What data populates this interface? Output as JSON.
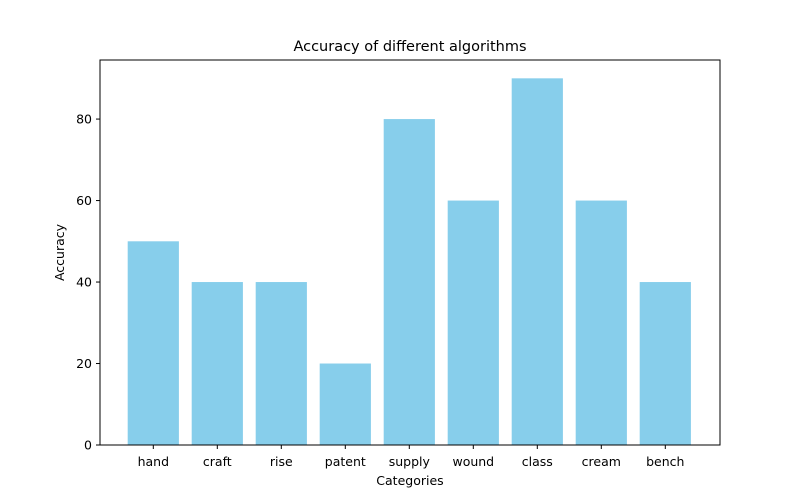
{
  "chart_data": {
    "type": "bar",
    "title": "Accuracy of different algorithms",
    "xlabel": "Categories",
    "ylabel": "Accuracy",
    "categories": [
      "hand",
      "craft",
      "rise",
      "patent",
      "supply",
      "wound",
      "class",
      "cream",
      "bench"
    ],
    "values": [
      50,
      40,
      40,
      20,
      80,
      60,
      90,
      60,
      40
    ],
    "ylim": [
      0,
      94.5
    ],
    "yticks": [
      0,
      20,
      40,
      60,
      80
    ],
    "bar_color": "#87ceeb",
    "grid": false,
    "legend": false
  }
}
